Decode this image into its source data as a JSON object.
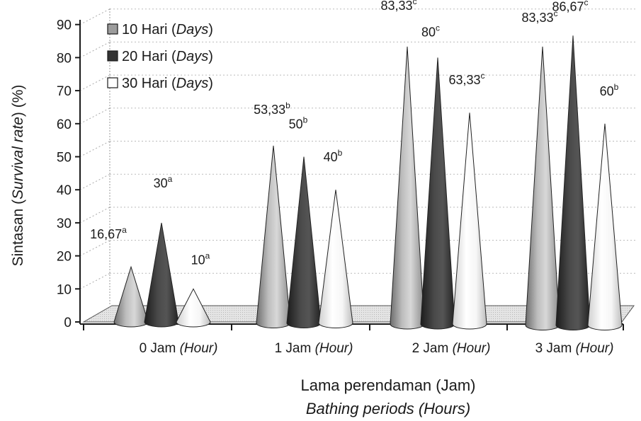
{
  "chart_data": {
    "type": "bar",
    "style": "3d-cone",
    "categories": [
      {
        "main": "0 Jam",
        "sub": "(Hour)"
      },
      {
        "main": "1 Jam",
        "sub": "(Hour)"
      },
      {
        "main": "2 Jam",
        "sub": "(Hour)"
      },
      {
        "main": "3 Jam",
        "sub": "(Hour)"
      }
    ],
    "series": [
      {
        "name_main": "10 Hari",
        "name_sub": "(Days)",
        "color": "#a6a6a6",
        "values": [
          16.67,
          53.33,
          83.33,
          83.33
        ],
        "labels": [
          "16,67",
          "53,33",
          "83,33",
          "83,33"
        ],
        "letters": [
          "a",
          "b",
          "c",
          "c"
        ]
      },
      {
        "name_main": "20 Hari",
        "name_sub": "(Days)",
        "color": "#3a3a3a",
        "values": [
          30,
          50,
          80,
          86.67
        ],
        "labels": [
          "30",
          "50",
          "80",
          "86,67"
        ],
        "letters": [
          "a",
          "b",
          "c",
          "c"
        ]
      },
      {
        "name_main": "30 Hari",
        "name_sub": "(Days)",
        "color": "#f4f4f4",
        "values": [
          10,
          40,
          63.33,
          60
        ],
        "labels": [
          "10",
          "40",
          "63,33",
          "60"
        ],
        "letters": [
          "a",
          "b",
          "c",
          "b"
        ]
      }
    ],
    "yticks": [
      "0",
      "10",
      "20",
      "30",
      "40",
      "50",
      "60",
      "70",
      "80",
      "90"
    ],
    "ylim": [
      0,
      90
    ],
    "ylabel": {
      "main": "Sintasan",
      "italic": "Survival rate",
      "unit": "(%)"
    },
    "xlabel": {
      "main": "Lama perendaman (Jam)",
      "italic": "Bathing periods (Hours)"
    },
    "grid": true,
    "legend_position": "top-left"
  }
}
